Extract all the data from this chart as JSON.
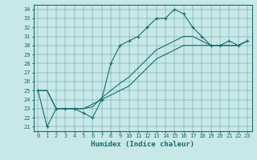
{
  "title": "",
  "xlabel": "Humidex (Indice chaleur)",
  "bg_color": "#c8e8e8",
  "line_color": "#1a6b6b",
  "xlim": [
    -0.5,
    23.5
  ],
  "ylim": [
    20.5,
    34.5
  ],
  "xticks": [
    0,
    1,
    2,
    3,
    4,
    5,
    6,
    7,
    8,
    9,
    10,
    11,
    12,
    13,
    14,
    15,
    16,
    17,
    18,
    19,
    20,
    21,
    22,
    23
  ],
  "yticks": [
    21,
    22,
    23,
    24,
    25,
    26,
    27,
    28,
    29,
    30,
    31,
    32,
    33,
    34
  ],
  "series": [
    {
      "x": [
        0,
        1,
        2,
        3,
        4,
        5,
        6,
        7,
        8,
        9,
        10,
        11,
        12,
        13,
        14,
        15,
        16,
        17,
        18,
        19,
        20,
        21,
        22,
        23
      ],
      "y": [
        25,
        21,
        23,
        23,
        23,
        22.5,
        22,
        24,
        28,
        30,
        30.5,
        31,
        32,
        33,
        33,
        34,
        33.5,
        32,
        31,
        30,
        30,
        30.5,
        30,
        30.5
      ],
      "marker": "+"
    },
    {
      "x": [
        0,
        1,
        2,
        3,
        4,
        5,
        6,
        7,
        8,
        9,
        10,
        11,
        12,
        13,
        14,
        15,
        16,
        17,
        18,
        19,
        20,
        21,
        22,
        23
      ],
      "y": [
        25,
        25,
        23,
        23,
        23,
        23,
        23.5,
        24,
        24.5,
        25,
        25.5,
        26.5,
        27.5,
        28.5,
        29,
        29.5,
        30,
        30,
        30,
        30,
        30,
        30,
        30,
        30.5
      ],
      "marker": null
    },
    {
      "x": [
        0,
        1,
        2,
        3,
        4,
        5,
        6,
        7,
        8,
        9,
        10,
        11,
        12,
        13,
        14,
        15,
        16,
        17,
        18,
        19,
        20,
        21,
        22,
        23
      ],
      "y": [
        25,
        25,
        23,
        23,
        23,
        23,
        23.2,
        24.2,
        25,
        25.8,
        26.5,
        27.5,
        28.5,
        29.5,
        30,
        30.5,
        31,
        31,
        30.5,
        30,
        30,
        30,
        30,
        30.5
      ],
      "marker": null
    }
  ]
}
